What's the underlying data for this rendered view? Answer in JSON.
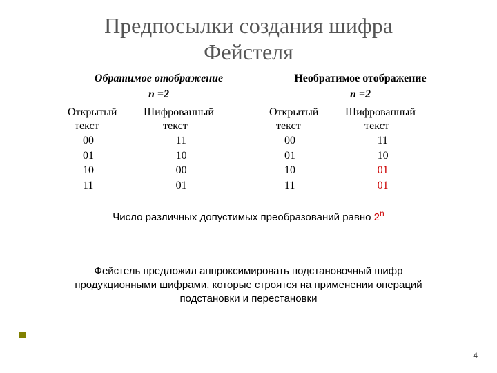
{
  "title_line1": "Предпосылки создания шифра",
  "title_line2": "Фейcтеля",
  "left": {
    "heading": "Обратимое отображение",
    "sub": "n =2",
    "col1_a": "Открытый",
    "col2_a": "Шифрованный",
    "col1_b": "текст",
    "col2_b": "текст",
    "rows": [
      {
        "p": "00",
        "c": "11",
        "red": false
      },
      {
        "p": "01",
        "c": "10",
        "red": false
      },
      {
        "p": "10",
        "c": "00",
        "red": false
      },
      {
        "p": "11",
        "c": "01",
        "red": false
      }
    ]
  },
  "right": {
    "heading": "Необратимое отображение",
    "sub": "n =2",
    "col1_a": "Открытый",
    "col2_a": "Шифрованный",
    "col1_b": "текст",
    "col2_b": "текст",
    "rows": [
      {
        "p": "00",
        "c": "11",
        "red": false
      },
      {
        "p": "01",
        "c": "10",
        "red": false
      },
      {
        "p": "10",
        "c": "01",
        "red": true
      },
      {
        "p": "11",
        "c": "01",
        "red": true
      }
    ]
  },
  "mid_prefix": "Число различных допустимых преобразований равно ",
  "mid_base": "2",
  "mid_exp": "n",
  "bottom": "Фейстель предложил аппроксимировать подстановочный шифр продукционными шифрами, которые строятся на применении операций подстановки и перестановки",
  "page": "4",
  "colors": {
    "title": "#555555",
    "red": "#cc0000",
    "bullet": "#808000",
    "bg": "#ffffff"
  },
  "fonts": {
    "serif": "Times New Roman",
    "sans": "Arial",
    "title_size_pt": 24,
    "body_size_pt": 12,
    "sans_size_pt": 11
  }
}
